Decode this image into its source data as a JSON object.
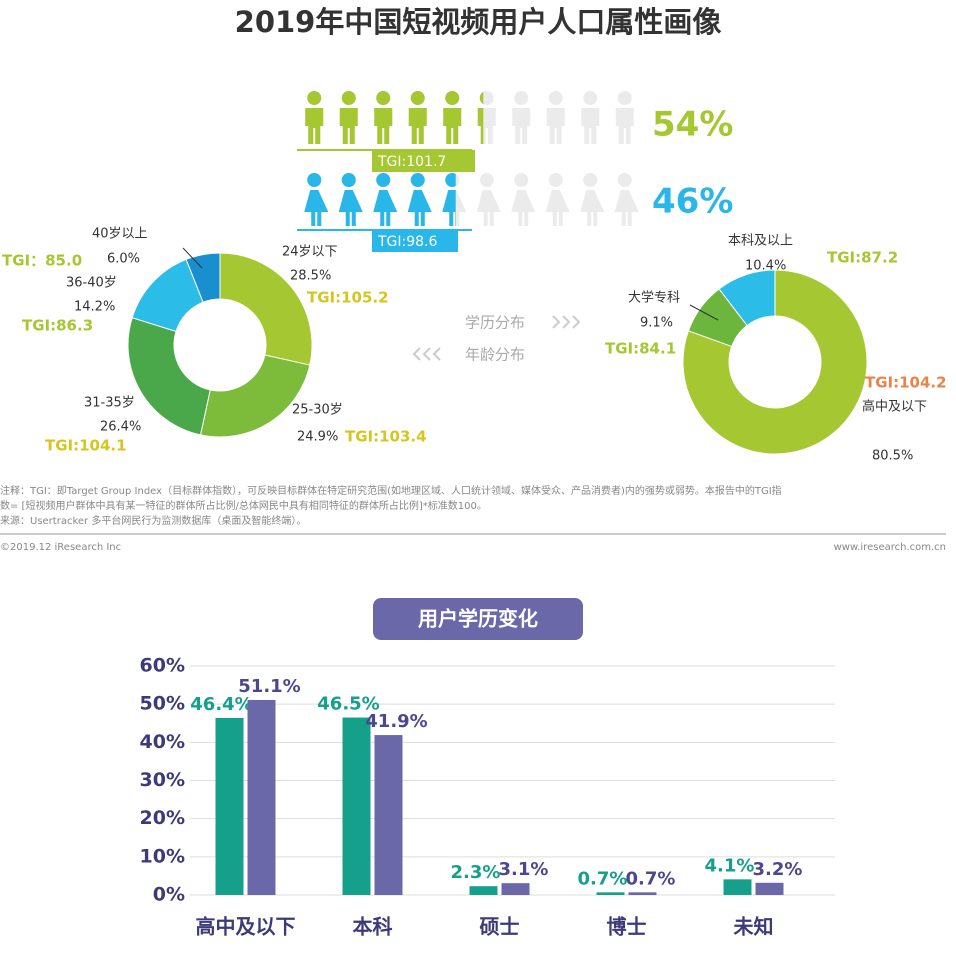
{
  "title": "2019年中国短视频用户人口属性画像",
  "gender": [
    {
      "value": 54,
      "value_label": "54%",
      "tgi": "TGI:101.7",
      "color": "#a5c731"
    },
    {
      "value": 46,
      "value_label": "46%",
      "tgi": "TGI:98.6",
      "color": "#29b6e8"
    }
  ],
  "age": {
    "label": "年龄分布",
    "segments": [
      {
        "name": "24岁以下",
        "value": 28.5,
        "value_label": "28.5%",
        "tgi": "TGI:105.2",
        "color": "#a5c731"
      },
      {
        "name": "25-30岁",
        "value": 24.9,
        "value_label": "24.9%",
        "tgi": "TGI:103.4",
        "color": "#7cbc3a"
      },
      {
        "name": "31-35岁",
        "value": 26.4,
        "value_label": "26.4%",
        "tgi": "TGI:104.1",
        "color": "#4aa84a"
      },
      {
        "name": "36-40岁",
        "value": 14.2,
        "value_label": "14.2%",
        "tgi": "TGI:86.3",
        "color": "#2bbce8"
      },
      {
        "name": "40岁以上",
        "value": 6.0,
        "value_label": "6.0%",
        "tgi": "TGI：85.0",
        "color": "#1a8fd0"
      }
    ]
  },
  "education": {
    "label": "学历分布",
    "segments": [
      {
        "name": "高中及以下",
        "value": 80.5,
        "value_label": "80.5%",
        "tgi": "TGI:104.2",
        "color": "#a5c731"
      },
      {
        "name": "大学专科",
        "value": 9.1,
        "value_label": "9.1%",
        "tgi": "TGI:84.1",
        "color": "#6cb63e"
      },
      {
        "name": "本科及以上",
        "value": 10.4,
        "value_label": "10.4%",
        "tgi": "TGI:87.2",
        "color": "#2bbce8"
      }
    ]
  },
  "notes": [
    "注释：TGI：即Target Group Index（目标群体指数），可反映目标群体在特定研究范围(如地理区域、人口统计领域、媒体受众、产品消费者)内的强势或弱势。本报告中的TGI指",
    "数= [短视频用户群体中具有某一特征的群体所占比例/总体网民中具有相同特征的群体所占比例]*标准数100。",
    "来源：Usertracker 多平台网民行为监测数据库（桌面及智能终端）。"
  ],
  "footer": {
    "left": "©2019.12 iResearch Inc",
    "right": "www.iresearch.com.cn"
  },
  "chart_data": {
    "type": "bar",
    "title": "用户学历变化",
    "categories": [
      "高中及以下",
      "本科",
      "硕士",
      "博士",
      "未知"
    ],
    "series": [
      {
        "color": "#15a08c",
        "values": [
          46.4,
          46.5,
          2.3,
          0.7,
          4.1
        ],
        "value_labels": [
          "46.4%",
          "46.5%",
          "2.3%",
          "0.7%",
          "4.1%"
        ]
      },
      {
        "color": "#6a68a8",
        "values": [
          51.1,
          41.9,
          3.1,
          0.7,
          3.2
        ],
        "value_labels": [
          "51.1%",
          "41.9%",
          "3.1%",
          "0.7%",
          "3.2%"
        ]
      }
    ],
    "ylim": [
      0,
      60
    ],
    "yticks": [
      {
        "value": 0,
        "label": "0%"
      },
      {
        "value": 10,
        "label": "10%"
      },
      {
        "value": 20,
        "label": "20%"
      },
      {
        "value": 30,
        "label": "30%"
      },
      {
        "value": 40,
        "label": "40%"
      },
      {
        "value": 50,
        "label": "50%"
      },
      {
        "value": 60,
        "label": "60%"
      }
    ],
    "grid": true
  }
}
